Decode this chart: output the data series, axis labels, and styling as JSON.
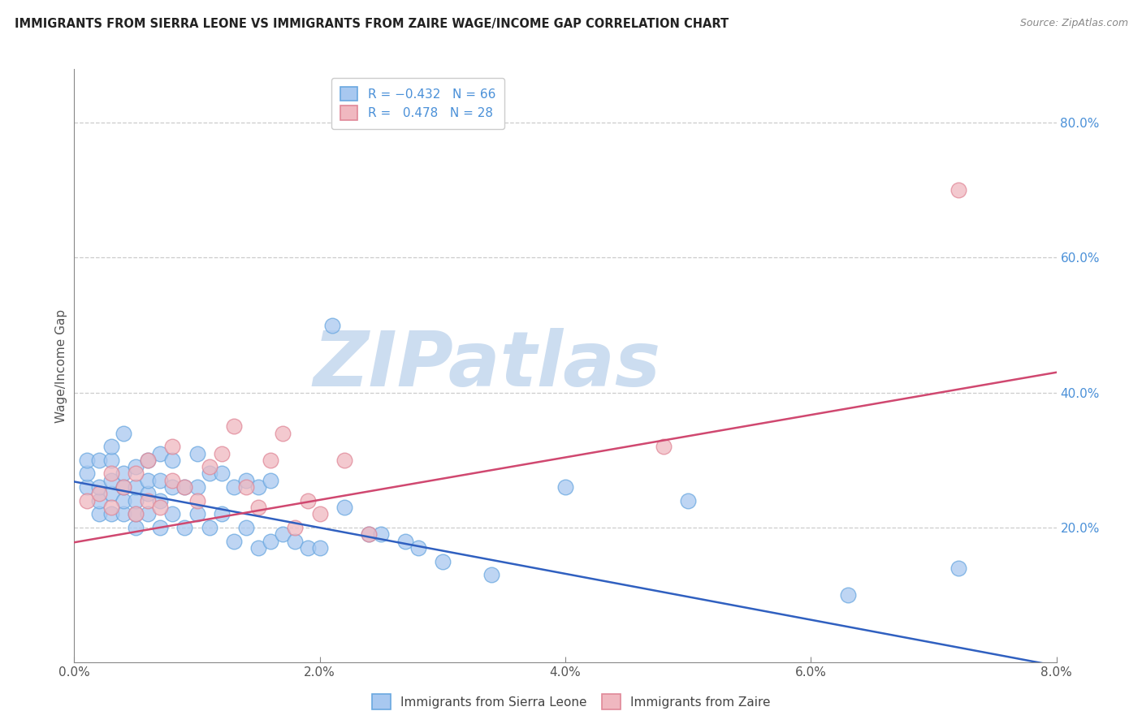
{
  "title": "IMMIGRANTS FROM SIERRA LEONE VS IMMIGRANTS FROM ZAIRE WAGE/INCOME GAP CORRELATION CHART",
  "source": "Source: ZipAtlas.com",
  "ylabel": "Wage/Income Gap",
  "xlim": [
    0.0,
    0.08
  ],
  "ylim": [
    0.0,
    0.88
  ],
  "xticks": [
    0.0,
    0.02,
    0.04,
    0.06,
    0.08
  ],
  "xticklabels": [
    "0.0%",
    "2.0%",
    "4.0%",
    "6.0%",
    "8.0%"
  ],
  "right_yticks": [
    0.2,
    0.4,
    0.6,
    0.8
  ],
  "right_yticklabels": [
    "20.0%",
    "40.0%",
    "60.0%",
    "80.0%"
  ],
  "sierra_leone_color": "#a8c8f0",
  "sierra_leone_edge": "#6aa8e0",
  "zaire_color": "#f0b8c0",
  "zaire_edge": "#e08898",
  "trend_blue": "#3060c0",
  "trend_pink": "#d04870",
  "tick_color": "#4a90d8",
  "legend_label_blue": "Immigrants from Sierra Leone",
  "legend_label_pink": "Immigrants from Zaire",
  "watermark": "ZIPatlas",
  "watermark_color": "#ccddf0",
  "sierra_leone_x": [
    0.001,
    0.001,
    0.001,
    0.002,
    0.002,
    0.002,
    0.002,
    0.003,
    0.003,
    0.003,
    0.003,
    0.003,
    0.004,
    0.004,
    0.004,
    0.004,
    0.004,
    0.005,
    0.005,
    0.005,
    0.005,
    0.005,
    0.006,
    0.006,
    0.006,
    0.006,
    0.007,
    0.007,
    0.007,
    0.007,
    0.008,
    0.008,
    0.008,
    0.009,
    0.009,
    0.01,
    0.01,
    0.01,
    0.011,
    0.011,
    0.012,
    0.012,
    0.013,
    0.013,
    0.014,
    0.014,
    0.015,
    0.015,
    0.016,
    0.016,
    0.017,
    0.018,
    0.019,
    0.02,
    0.021,
    0.022,
    0.024,
    0.025,
    0.027,
    0.028,
    0.03,
    0.034,
    0.04,
    0.05,
    0.063,
    0.072
  ],
  "sierra_leone_y": [
    0.26,
    0.28,
    0.3,
    0.22,
    0.24,
    0.26,
    0.3,
    0.22,
    0.25,
    0.27,
    0.3,
    0.32,
    0.22,
    0.24,
    0.26,
    0.28,
    0.34,
    0.2,
    0.22,
    0.24,
    0.26,
    0.29,
    0.22,
    0.25,
    0.27,
    0.3,
    0.2,
    0.24,
    0.27,
    0.31,
    0.22,
    0.26,
    0.3,
    0.2,
    0.26,
    0.22,
    0.26,
    0.31,
    0.2,
    0.28,
    0.22,
    0.28,
    0.18,
    0.26,
    0.2,
    0.27,
    0.17,
    0.26,
    0.18,
    0.27,
    0.19,
    0.18,
    0.17,
    0.17,
    0.5,
    0.23,
    0.19,
    0.19,
    0.18,
    0.17,
    0.15,
    0.13,
    0.26,
    0.24,
    0.1,
    0.14
  ],
  "zaire_x": [
    0.001,
    0.002,
    0.003,
    0.003,
    0.004,
    0.005,
    0.005,
    0.006,
    0.006,
    0.007,
    0.008,
    0.008,
    0.009,
    0.01,
    0.011,
    0.012,
    0.013,
    0.014,
    0.015,
    0.016,
    0.017,
    0.018,
    0.019,
    0.02,
    0.022,
    0.024,
    0.048,
    0.072
  ],
  "zaire_y": [
    0.24,
    0.25,
    0.23,
    0.28,
    0.26,
    0.22,
    0.28,
    0.24,
    0.3,
    0.23,
    0.27,
    0.32,
    0.26,
    0.24,
    0.29,
    0.31,
    0.35,
    0.26,
    0.23,
    0.3,
    0.34,
    0.2,
    0.24,
    0.22,
    0.3,
    0.19,
    0.32,
    0.7
  ],
  "blue_trend_x0": 0.0,
  "blue_trend_y0": 0.268,
  "blue_trend_x1": 0.08,
  "blue_trend_y1": -0.005,
  "pink_trend_x0": 0.0,
  "pink_trend_y0": 0.178,
  "pink_trend_x1": 0.08,
  "pink_trend_y1": 0.43
}
